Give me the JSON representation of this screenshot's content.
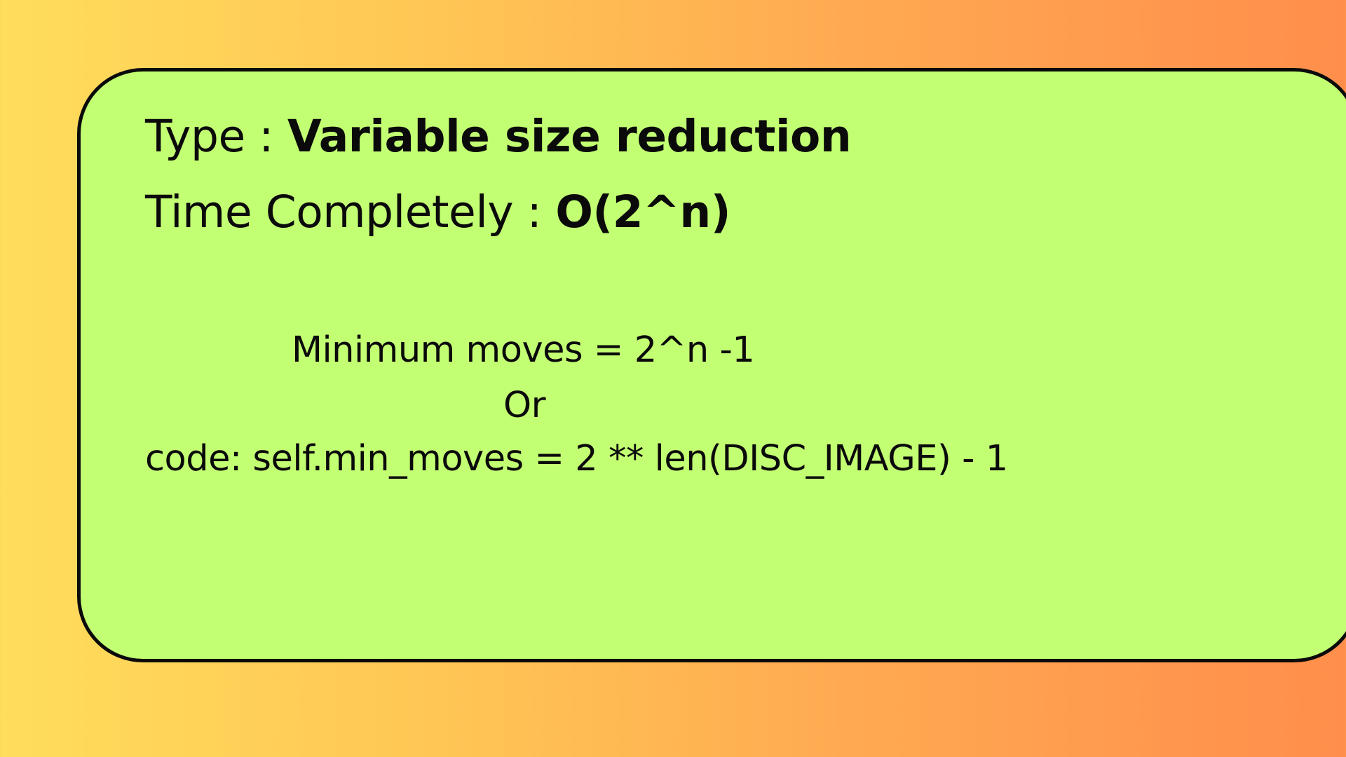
{
  "card": {
    "type_label": "Type :",
    "type_value": "Variable size reduction",
    "time_label": "Time Completely :",
    "time_value": "O(2^n)",
    "formula": "Minimum moves = 2^n -1",
    "or_text": "Or",
    "code_line": "code: self.min_moves = 2 ** len(DISC_IMAGE) - 1"
  },
  "colors": {
    "card_background": "#c3ff73",
    "card_border": "#0a0a0a",
    "gradient_left": "#ffdd5c",
    "gradient_right": "#ff8e4c"
  }
}
